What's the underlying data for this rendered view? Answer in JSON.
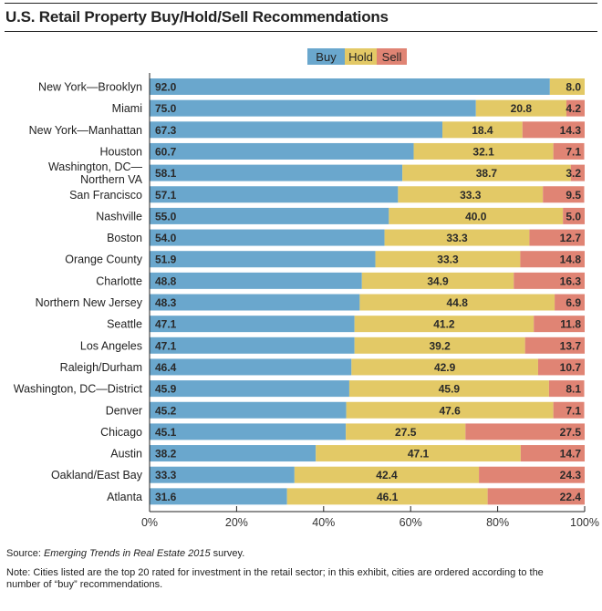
{
  "chart_data": {
    "type": "bar",
    "stacked": true,
    "orientation": "horizontal",
    "title": "U.S. Retail Property Buy/Hold/Sell Recommendations",
    "categories": [
      "New York—Brooklyn",
      "Miami",
      "New York—Manhattan",
      "Houston",
      "Washington, DC—\nNorthern VA",
      "San Francisco",
      "Nashville",
      "Boston",
      "Orange County",
      "Charlotte",
      "Northern New Jersey",
      "Seattle",
      "Los Angeles",
      "Raleigh/Durham",
      "Washington, DC—District",
      "Denver",
      "Chicago",
      "Austin",
      "Oakland/East Bay",
      "Atlanta"
    ],
    "series": [
      {
        "name": "Buy",
        "color": "#6aa7cd",
        "values": [
          92.0,
          75.0,
          67.3,
          60.7,
          58.1,
          57.1,
          55.0,
          54.0,
          51.9,
          48.8,
          48.3,
          47.1,
          47.1,
          46.4,
          45.9,
          45.2,
          45.1,
          38.2,
          33.3,
          31.6
        ]
      },
      {
        "name": "Hold",
        "color": "#e3c966",
        "values": [
          8.0,
          20.8,
          18.4,
          32.1,
          38.7,
          33.3,
          40.0,
          33.3,
          33.3,
          34.9,
          44.8,
          41.2,
          39.2,
          42.9,
          45.9,
          47.6,
          27.5,
          47.1,
          42.4,
          46.1
        ]
      },
      {
        "name": "Sell",
        "color": "#e08474",
        "values": [
          0,
          4.2,
          14.3,
          7.1,
          3.2,
          9.5,
          5.0,
          12.7,
          14.8,
          16.3,
          6.9,
          11.8,
          13.7,
          10.7,
          8.1,
          7.1,
          27.5,
          14.7,
          24.3,
          22.4
        ]
      }
    ],
    "xlim": [
      0,
      100
    ],
    "xticks": [
      "0%",
      "20%",
      "40%",
      "60%",
      "80%",
      "100%"
    ],
    "xlabel": "",
    "ylabel": "",
    "legend": "top-center",
    "grid": false
  },
  "footer": {
    "source_prefix": "Source: ",
    "source_title": "Emerging Trends in Real Estate 2015",
    "source_suffix": " survey.",
    "note_line1": "Note: Cities listed are the top 20 rated for investment in the retail sector; in this exhibit, cities are ordered according to the",
    "note_line2": "number of “buy” recommendations."
  }
}
